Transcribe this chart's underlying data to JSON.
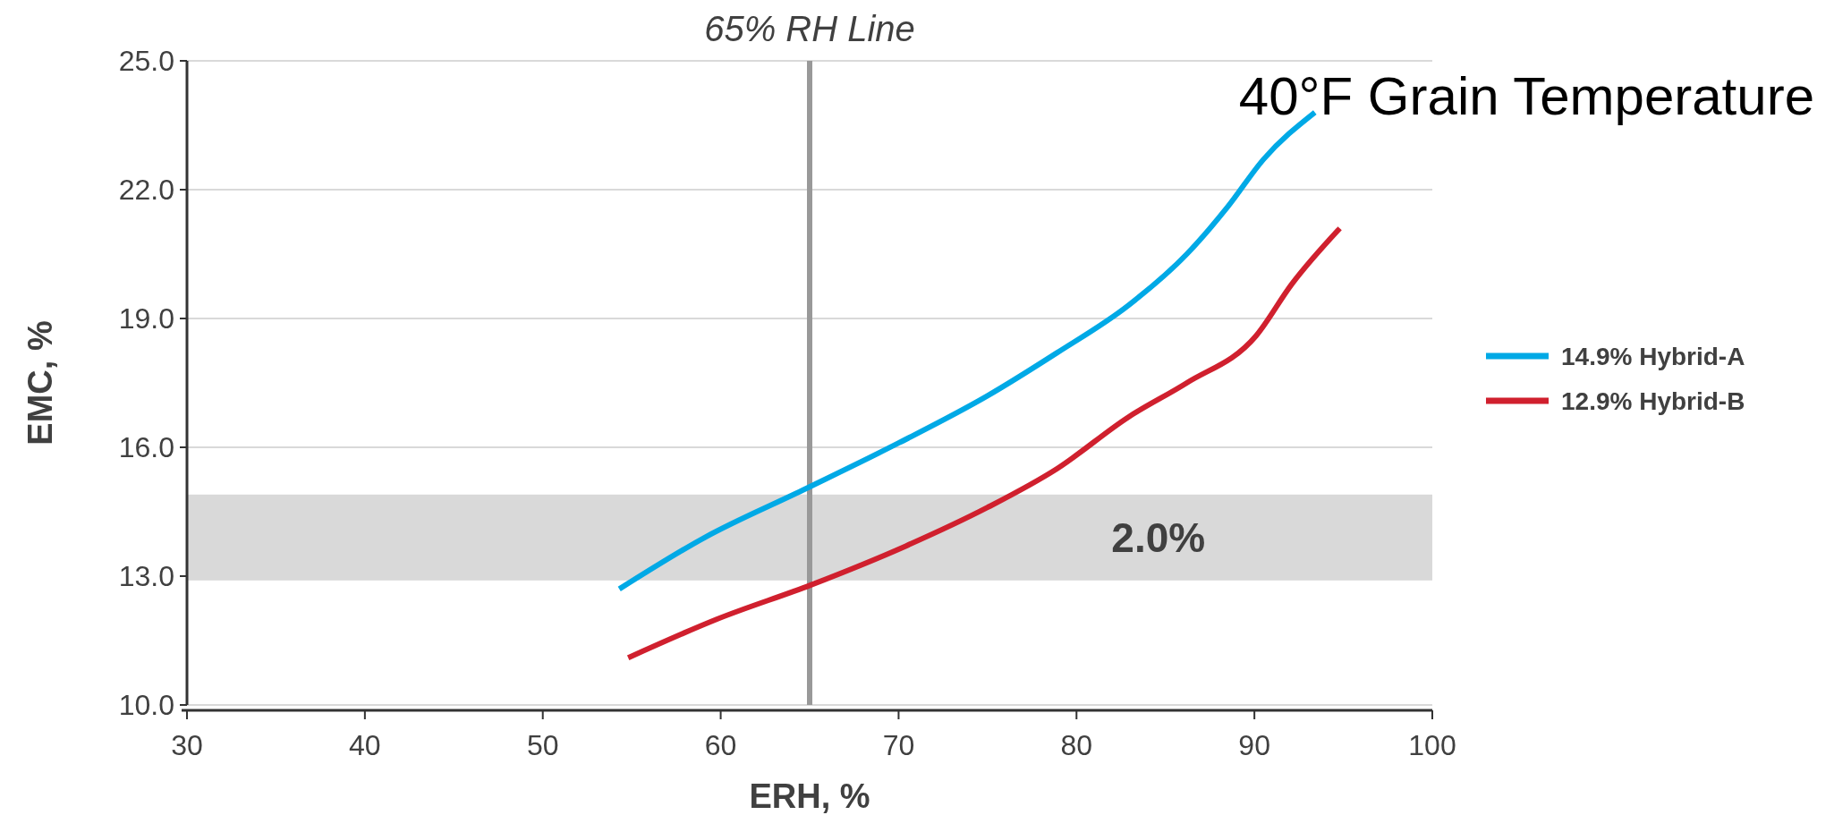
{
  "chart_data": {
    "type": "line",
    "title": "40°F Grain Temperature",
    "xlabel": "ERH, %",
    "ylabel": "EMC, %",
    "xlim": [
      30,
      100
    ],
    "xticks": [
      30,
      40,
      50,
      60,
      70,
      80,
      90,
      100
    ],
    "ylim": [
      10,
      25
    ],
    "yticks": [
      {
        "value": 10,
        "label": "10.0"
      },
      {
        "value": 13,
        "label": "13.0"
      },
      {
        "value": 16,
        "label": "16.0"
      },
      {
        "value": 19,
        "label": "19.0"
      },
      {
        "value": 22,
        "label": "22.0"
      },
      {
        "value": 25,
        "label": "25.0"
      }
    ],
    "grid": "y",
    "legend": "right",
    "marker": "none",
    "line_style": "solid",
    "series": [
      {
        "name": "14.9% Hybrid-A",
        "color": "#00a9e6",
        "x": [
          54.3,
          59.1,
          64.6,
          70.0,
          75.0,
          78.9,
          82.9,
          86.2,
          88.5,
          90.5,
          93.4
        ],
        "values": [
          12.7,
          13.9,
          15.0,
          16.1,
          17.2,
          18.2,
          19.3,
          20.5,
          21.6,
          22.7,
          23.8
        ]
      },
      {
        "name": "12.9% Hybrid-B",
        "color": "#d0202e",
        "x": [
          54.8,
          59.8,
          65.1,
          70.4,
          75.0,
          78.9,
          82.9,
          86.2,
          90.1,
          92.1,
          94.8
        ],
        "values": [
          11.1,
          12.0,
          12.8,
          13.7,
          14.6,
          15.5,
          16.7,
          17.5,
          18.6,
          19.8,
          21.1
        ]
      }
    ],
    "ref_lines": [
      {
        "axis": "x",
        "value": 65,
        "label": "65% RH Line",
        "color": "#999999"
      }
    ],
    "bands": [
      {
        "axis": "y",
        "from": 12.9,
        "to": 14.9,
        "label": "2.0%",
        "color": "#d9d9d9"
      }
    ]
  }
}
